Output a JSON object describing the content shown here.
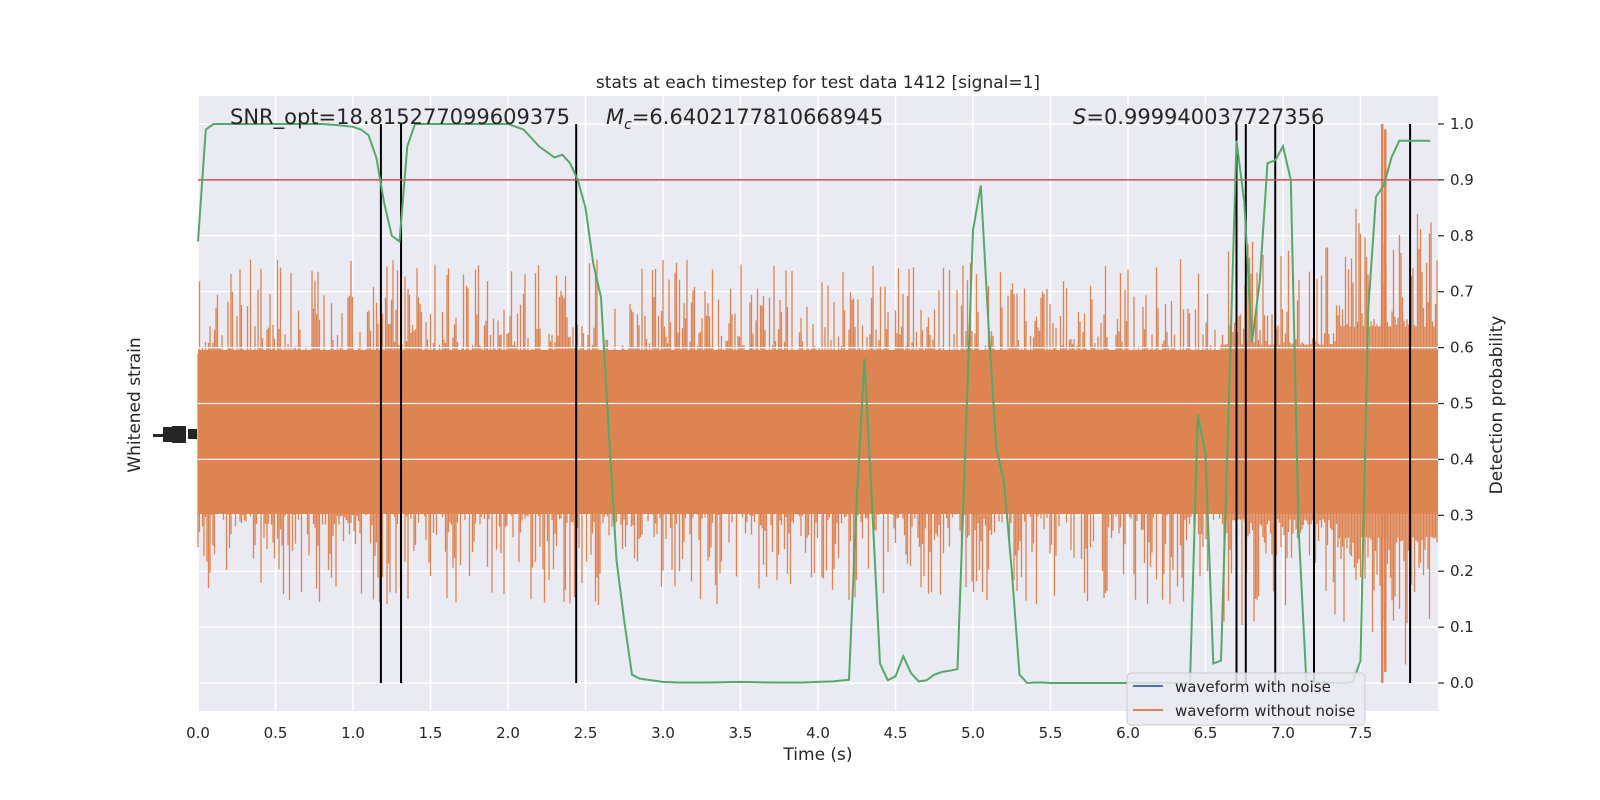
{
  "chart_data": {
    "type": "line",
    "title": "stats at each timestep for test data 1412 [signal=1]",
    "xlabel": "Time (s)",
    "ylabel_left": "Whitened strain",
    "ylabel_right": "Detection probability",
    "xlim": [
      0,
      8
    ],
    "ylim_right": [
      -0.05,
      1.05
    ],
    "x_ticks": [
      0.0,
      0.5,
      1.0,
      1.5,
      2.0,
      2.5,
      3.0,
      3.5,
      4.0,
      4.5,
      5.0,
      5.5,
      6.0,
      6.5,
      7.0,
      7.5
    ],
    "y_ticks_right": [
      0.0,
      0.1,
      0.2,
      0.3,
      0.4,
      0.5,
      0.6,
      0.7,
      0.8,
      0.9,
      1.0
    ],
    "grid": true,
    "legend_position": "bottom-right",
    "annotations": {
      "snr": "SNR_opt=18.815277099609375",
      "mc_symbol": "M",
      "mc_sub": "c",
      "mc_value": "=6.6402177810668945",
      "s_symbol": "S",
      "s_value": "=0.999940037727356"
    },
    "threshold": 0.9,
    "series": [
      {
        "name": "waveform with noise",
        "color": "#4c72b0"
      },
      {
        "name": "waveform without noise",
        "color": "#dd8452"
      }
    ],
    "probability_series": {
      "color": "#55a868",
      "x": [
        0.0,
        0.05,
        0.1,
        0.15,
        0.2,
        0.3,
        0.4,
        0.5,
        0.6,
        0.7,
        0.8,
        0.9,
        1.0,
        1.05,
        1.1,
        1.15,
        1.2,
        1.25,
        1.3,
        1.35,
        1.4,
        1.45,
        1.5,
        1.6,
        1.7,
        1.8,
        1.9,
        2.0,
        2.1,
        2.2,
        2.3,
        2.35,
        2.4,
        2.45,
        2.5,
        2.55,
        2.6,
        2.65,
        2.7,
        2.75,
        2.8,
        2.85,
        2.9,
        3.0,
        3.1,
        3.2,
        3.3,
        3.5,
        3.7,
        3.9,
        4.0,
        4.1,
        4.2,
        4.25,
        4.3,
        4.35,
        4.4,
        4.45,
        4.5,
        4.55,
        4.6,
        4.65,
        4.7,
        4.75,
        4.8,
        4.85,
        4.9,
        5.0,
        5.05,
        5.1,
        5.15,
        5.2,
        5.25,
        5.3,
        5.35,
        5.4,
        5.45,
        5.5,
        5.55,
        5.6,
        5.65,
        5.7,
        5.8,
        5.9,
        6.0,
        6.1,
        6.2,
        6.3,
        6.35,
        6.4,
        6.45,
        6.5,
        6.55,
        6.6,
        6.65,
        6.7,
        6.75,
        6.8,
        6.85,
        6.9,
        6.95,
        7.0,
        7.05,
        7.1,
        7.15,
        7.2,
        7.25,
        7.3,
        7.35,
        7.4,
        7.45,
        7.5,
        7.55,
        7.6,
        7.65,
        7.7,
        7.75,
        7.8,
        7.85,
        7.9,
        7.95
      ],
      "y": [
        0.79,
        0.99,
        1.0,
        1.0,
        1.0,
        1.0,
        1.0,
        1.0,
        1.0,
        1.0,
        1.0,
        0.998,
        0.995,
        0.99,
        0.98,
        0.94,
        0.86,
        0.8,
        0.79,
        0.96,
        1.0,
        1.0,
        1.0,
        1.0,
        1.0,
        1.0,
        1.0,
        1.0,
        0.99,
        0.96,
        0.94,
        0.945,
        0.93,
        0.9,
        0.85,
        0.75,
        0.69,
        0.45,
        0.22,
        0.11,
        0.015,
        0.008,
        0.006,
        0.002,
        0.001,
        0.001,
        0.001,
        0.002,
        0.001,
        0.001,
        0.002,
        0.003,
        0.006,
        0.33,
        0.58,
        0.31,
        0.035,
        0.005,
        0.012,
        0.048,
        0.018,
        0.003,
        0.005,
        0.015,
        0.02,
        0.022,
        0.025,
        0.81,
        0.89,
        0.64,
        0.42,
        0.36,
        0.2,
        0.015,
        0.0,
        0.001,
        0.001,
        0.0,
        0.0,
        0.0,
        0.0,
        0.0,
        0.0,
        0.0,
        0.0,
        0.0,
        0.0,
        0.0,
        0.0,
        0.0,
        0.48,
        0.41,
        0.035,
        0.04,
        0.5,
        0.97,
        0.86,
        0.61,
        0.72,
        0.93,
        0.935,
        0.96,
        0.9,
        0.28,
        0.005,
        0.002,
        0.001,
        0.001,
        0.0,
        0.0,
        0.002,
        0.04,
        0.67,
        0.87,
        0.89,
        0.94,
        0.97,
        0.97,
        0.97,
        0.97,
        0.97
      ]
    },
    "vlines": [
      1.18,
      1.31,
      2.44,
      6.7,
      6.76,
      6.95,
      7.2,
      7.82
    ]
  }
}
